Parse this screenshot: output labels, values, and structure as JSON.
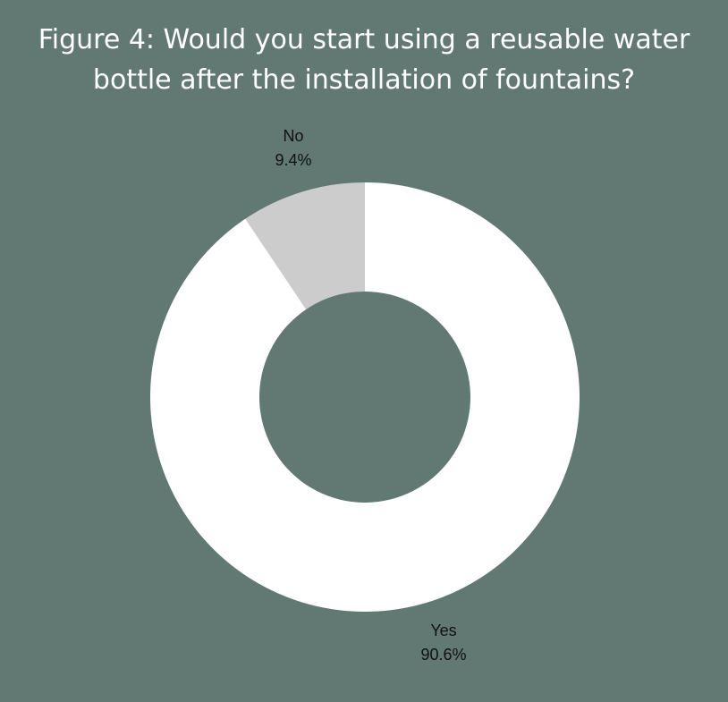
{
  "title_lines": [
    "Figure 4: Would you start using a reusable water",
    "bottle after the installation of fountains?"
  ],
  "colors": {
    "background": "#627873",
    "yes": "#ffffff",
    "no": "#cccccc",
    "label": "#111111"
  },
  "chart_data": {
    "type": "pie",
    "variant": "donut",
    "title": "Figure 4: Would you start using a reusable water bottle after the installation of fountains?",
    "slices": [
      {
        "label": "No",
        "value": 9.4,
        "display": "9.4%",
        "color": "#cccccc"
      },
      {
        "label": "Yes",
        "value": 90.6,
        "display": "90.6%",
        "color": "#ffffff"
      }
    ],
    "legend": "none"
  }
}
